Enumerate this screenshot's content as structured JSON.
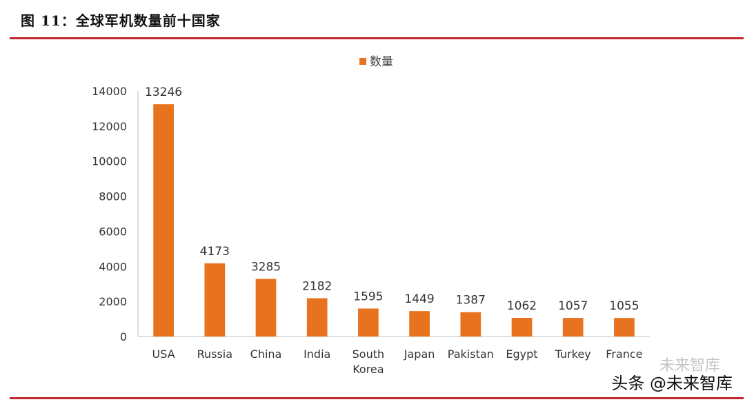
{
  "figure": {
    "title": "图 11：全球军机数量前十国家",
    "watermark_faint": "未来智库",
    "watermark": "头条 @未来智库"
  },
  "colors": {
    "bar": "#e8731e",
    "rule": "#c0282a",
    "axis": "#bfbfbf"
  },
  "chart_data": {
    "type": "bar",
    "categories": [
      "USA",
      "Russia",
      "China",
      "India",
      "South Korea",
      "Japan",
      "Pakistan",
      "Egypt",
      "Turkey",
      "France"
    ],
    "category_lines": [
      [
        "USA"
      ],
      [
        "Russia"
      ],
      [
        "China"
      ],
      [
        "India"
      ],
      [
        "South",
        "Korea"
      ],
      [
        "Japan"
      ],
      [
        "Pakistan"
      ],
      [
        "Egypt"
      ],
      [
        "Turkey"
      ],
      [
        "France"
      ]
    ],
    "series": [
      {
        "name": "数量",
        "values": [
          13246,
          4173,
          3285,
          2182,
          1595,
          1449,
          1387,
          1062,
          1057,
          1055
        ]
      }
    ],
    "data_labels": [
      "13246",
      "4173",
      "3285",
      "2182",
      "1595",
      "1449",
      "1387",
      "1062",
      "1057",
      "1055"
    ],
    "yticks": [
      "0",
      "2000",
      "4000",
      "6000",
      "8000",
      "10000",
      "12000",
      "14000"
    ],
    "ylim": [
      0,
      14000
    ],
    "legend_position": "top-center",
    "grid": false
  }
}
